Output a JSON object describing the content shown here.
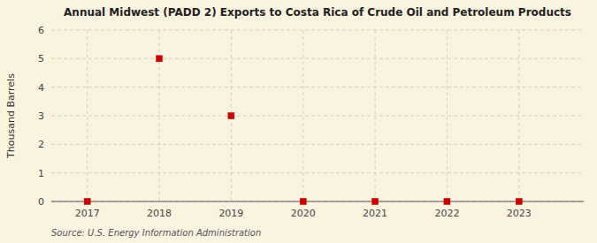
{
  "chart_data": {
    "type": "scatter",
    "title": "Annual Midwest (PADD 2) Exports to Costa Rica of Crude Oil and Petroleum Products",
    "ylabel": "Thousand Barrels",
    "source": "Source: U.S. Energy Information Administration",
    "x": [
      2017,
      2018,
      2019,
      2020,
      2021,
      2022,
      2023
    ],
    "values": [
      0,
      5,
      3,
      0,
      0,
      0,
      0
    ],
    "xlim": [
      2016.5,
      2023.9
    ],
    "ylim": [
      0,
      6
    ],
    "yticks": [
      0,
      1,
      2,
      3,
      4,
      5,
      6
    ],
    "xticks": [
      2017,
      2018,
      2019,
      2020,
      2021,
      2022,
      2023
    ],
    "color": "#cc0000",
    "marker": "square",
    "grid": true
  }
}
